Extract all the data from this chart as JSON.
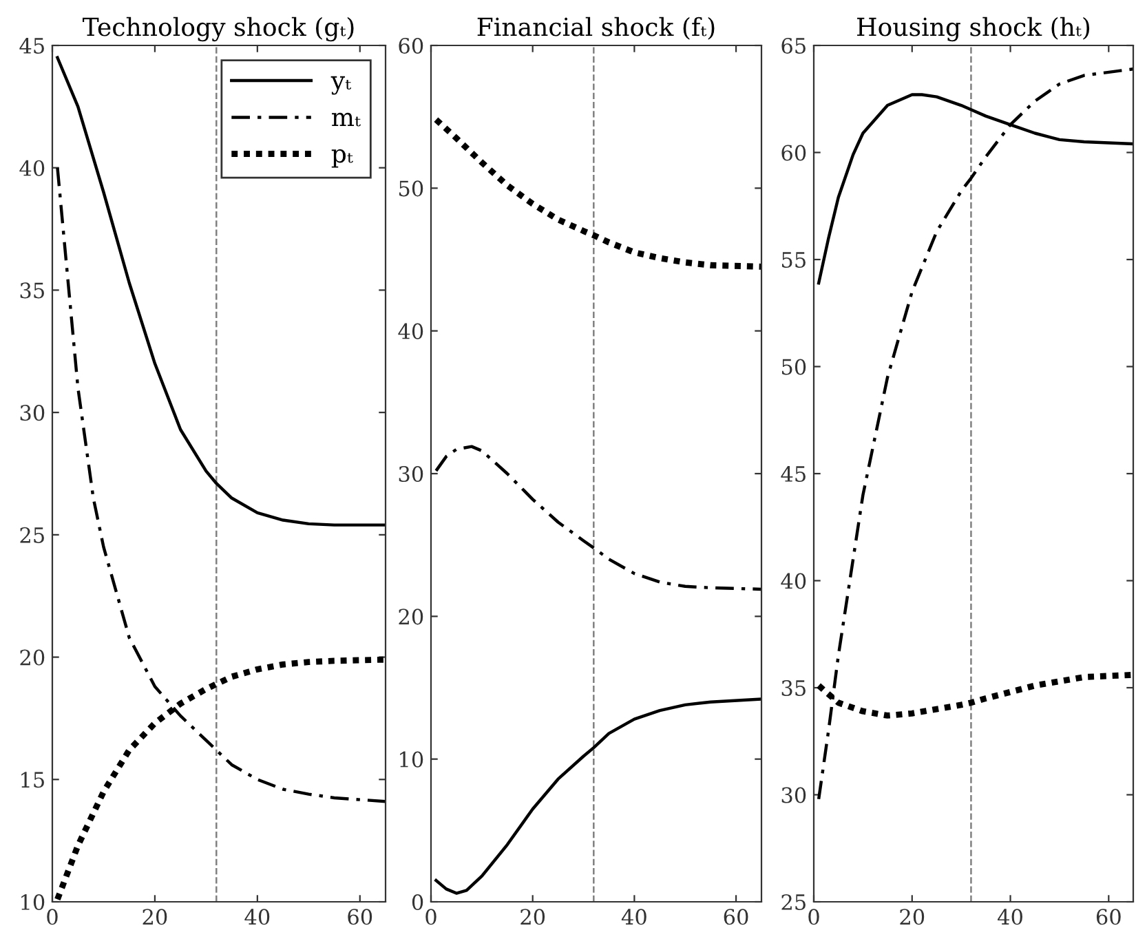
{
  "chart_data": [
    {
      "type": "line",
      "title": "Technology shock (gₜ)",
      "xlim": [
        0,
        65
      ],
      "xticks": [
        0,
        20,
        40,
        60
      ],
      "ylim": [
        10,
        45
      ],
      "yticks": [
        10,
        15,
        20,
        25,
        30,
        35,
        40,
        45
      ],
      "grid": false,
      "legend": "top right",
      "ref_lines": [
        {
          "axis": "x",
          "value": 32,
          "color": "#808080",
          "line_style": "dashed"
        }
      ],
      "series": [
        {
          "name": "yₜ",
          "color": "#000000",
          "line_style": "solid",
          "x": [
            1,
            5,
            10,
            15,
            20,
            25,
            30,
            32,
            35,
            40,
            45,
            50,
            55,
            65
          ],
          "values": [
            44.5,
            42.5,
            39,
            35.3,
            32,
            29.3,
            27.6,
            27.1,
            26.5,
            25.9,
            25.6,
            25.45,
            25.4,
            25.4
          ]
        },
        {
          "name": "mₜ",
          "color": "#000000",
          "line_style": "dashdot",
          "x": [
            1,
            3,
            5,
            8,
            10,
            15,
            20,
            25,
            30,
            32,
            35,
            40,
            45,
            50,
            55,
            65
          ],
          "values": [
            40,
            35.5,
            31,
            26.5,
            24.5,
            20.8,
            18.8,
            17.6,
            16.6,
            16.2,
            15.6,
            15.0,
            14.6,
            14.4,
            14.25,
            14.1
          ]
        },
        {
          "name": "pₜ",
          "color": "#000000",
          "line_style": "dotted",
          "x": [
            1,
            5,
            10,
            15,
            20,
            25,
            30,
            32,
            35,
            40,
            45,
            50,
            55,
            65
          ],
          "values": [
            10.1,
            12.3,
            14.5,
            16.2,
            17.3,
            18.1,
            18.7,
            18.9,
            19.2,
            19.5,
            19.7,
            19.8,
            19.85,
            19.9
          ]
        }
      ]
    },
    {
      "type": "line",
      "title": "Financial shock (fₜ)",
      "xlim": [
        0,
        65
      ],
      "xticks": [
        0,
        20,
        40,
        60
      ],
      "ylim": [
        0,
        60
      ],
      "yticks": [
        0,
        10,
        20,
        30,
        40,
        50,
        60
      ],
      "grid": false,
      "legend": false,
      "ref_lines": [
        {
          "axis": "x",
          "value": 32,
          "color": "#808080",
          "line_style": "dashed"
        }
      ],
      "series": [
        {
          "color": "#000000",
          "line_style": "solid",
          "x": [
            1,
            3,
            5,
            7,
            10,
            15,
            20,
            25,
            30,
            32,
            35,
            40,
            45,
            50,
            55,
            65
          ],
          "values": [
            1.5,
            0.9,
            0.6,
            0.8,
            1.8,
            4,
            6.5,
            8.6,
            10.2,
            10.8,
            11.8,
            12.8,
            13.4,
            13.8,
            14.0,
            14.2
          ]
        },
        {
          "color": "#000000",
          "line_style": "dashdot",
          "x": [
            1,
            3,
            5,
            8,
            10,
            15,
            20,
            25,
            30,
            32,
            35,
            40,
            45,
            50,
            55,
            65
          ],
          "values": [
            30.2,
            31.2,
            31.7,
            31.9,
            31.6,
            30.0,
            28.2,
            26.6,
            25.3,
            24.8,
            24.0,
            23.0,
            22.4,
            22.1,
            22.0,
            21.9
          ]
        },
        {
          "color": "#000000",
          "line_style": "dotted",
          "x": [
            1,
            5,
            10,
            15,
            20,
            25,
            30,
            32,
            35,
            40,
            45,
            50,
            55,
            65
          ],
          "values": [
            54.8,
            53.5,
            51.8,
            50.2,
            48.9,
            47.8,
            47.0,
            46.7,
            46.2,
            45.5,
            45.1,
            44.8,
            44.6,
            44.5
          ]
        }
      ]
    },
    {
      "type": "line",
      "title": "Housing shock (hₜ)",
      "xlim": [
        0,
        65
      ],
      "xticks": [
        0,
        20,
        40,
        60
      ],
      "ylim": [
        25,
        65
      ],
      "yticks": [
        25,
        30,
        35,
        40,
        45,
        50,
        55,
        60,
        65
      ],
      "grid": false,
      "legend": false,
      "ref_lines": [
        {
          "axis": "x",
          "value": 32,
          "color": "#808080",
          "line_style": "dashed"
        }
      ],
      "series": [
        {
          "color": "#000000",
          "line_style": "solid",
          "x": [
            1,
            3,
            5,
            8,
            10,
            15,
            20,
            22,
            25,
            30,
            32,
            35,
            40,
            45,
            50,
            55,
            65
          ],
          "values": [
            53.9,
            56,
            57.9,
            59.9,
            60.9,
            62.2,
            62.7,
            62.7,
            62.6,
            62.2,
            62.0,
            61.7,
            61.3,
            60.9,
            60.6,
            60.5,
            60.4
          ]
        },
        {
          "color": "#000000",
          "line_style": "dashdot",
          "x": [
            1,
            3,
            5,
            8,
            10,
            15,
            20,
            25,
            30,
            32,
            35,
            40,
            45,
            50,
            55,
            65
          ],
          "values": [
            29.8,
            33,
            36.5,
            41,
            44,
            49.5,
            53.5,
            56.3,
            58.2,
            58.8,
            59.8,
            61.3,
            62.4,
            63.2,
            63.6,
            63.9
          ]
        },
        {
          "color": "#000000",
          "line_style": "dotted",
          "x": [
            1,
            5,
            10,
            15,
            20,
            25,
            30,
            32,
            35,
            40,
            45,
            50,
            55,
            65
          ],
          "values": [
            35.1,
            34.3,
            33.9,
            33.7,
            33.8,
            34.0,
            34.2,
            34.3,
            34.5,
            34.8,
            35.1,
            35.3,
            35.5,
            35.6
          ]
        }
      ]
    }
  ]
}
